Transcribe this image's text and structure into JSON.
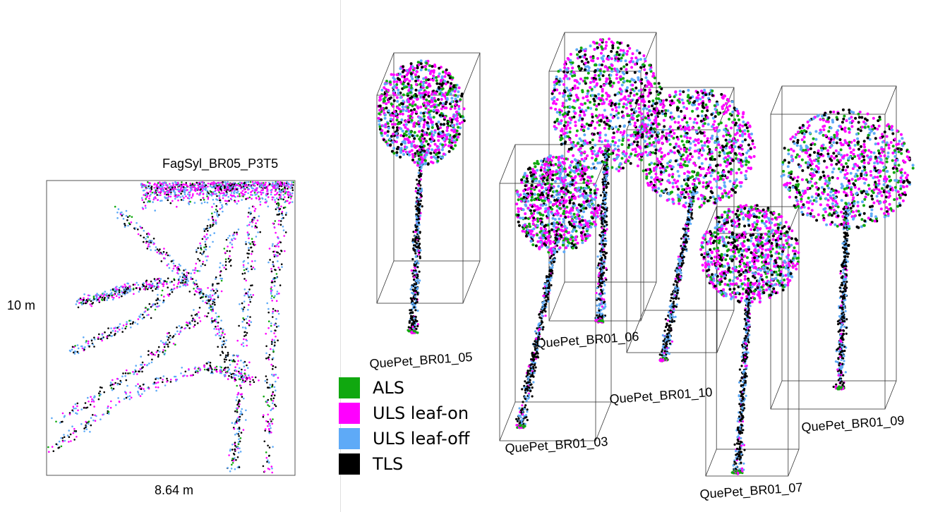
{
  "left_panel": {
    "title": "FagSyl_BR05_P3T5",
    "height_label": "10 m",
    "width_label": "8.64 m"
  },
  "legend": [
    {
      "label": "ALS",
      "color": "#10a80f"
    },
    {
      "label": "ULS leaf-on",
      "color": "#ff00ff"
    },
    {
      "label": "ULS leaf-off",
      "color": "#5eaaf7"
    },
    {
      "label": "TLS",
      "color": "#000000"
    }
  ],
  "trees": [
    {
      "id": "QuePet_BR01_05"
    },
    {
      "id": "QuePet_BR01_06"
    },
    {
      "id": "QuePet_BR01_10"
    },
    {
      "id": "QuePet_BR01_03"
    },
    {
      "id": "QuePet_BR01_07"
    },
    {
      "id": "QuePet_BR01_09"
    }
  ]
}
